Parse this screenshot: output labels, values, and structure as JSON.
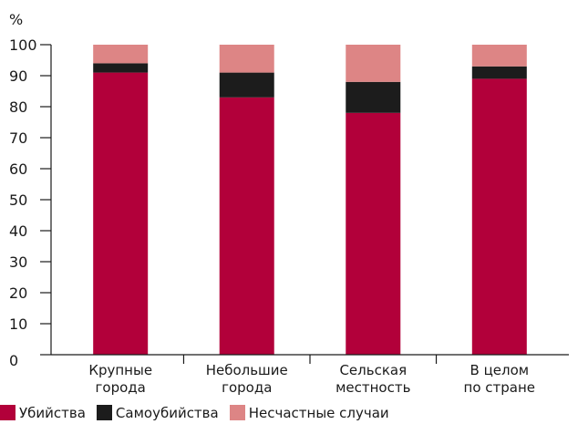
{
  "chart_data": {
    "type": "bar",
    "stacked": true,
    "unit_label": "%",
    "ylim": [
      0,
      100
    ],
    "yticks": [
      0,
      10,
      20,
      30,
      40,
      50,
      60,
      70,
      80,
      90,
      100
    ],
    "categories": [
      [
        "Крупные",
        "города"
      ],
      [
        "Небольшие",
        "города"
      ],
      [
        "Сельская",
        "местность"
      ],
      [
        "В целом",
        "по стране"
      ]
    ],
    "series": [
      {
        "name": "Убийства",
        "color": "#b2003a",
        "values": [
          91,
          83,
          78,
          89
        ]
      },
      {
        "name": "Самоубийства",
        "color": "#1c1c1c",
        "values": [
          3,
          8,
          10,
          4
        ]
      },
      {
        "name": "Несчастные случаи",
        "color": "#dd8585",
        "values": [
          6,
          9,
          12,
          7
        ]
      }
    ],
    "grid": false,
    "legend_position": "bottom-left"
  }
}
